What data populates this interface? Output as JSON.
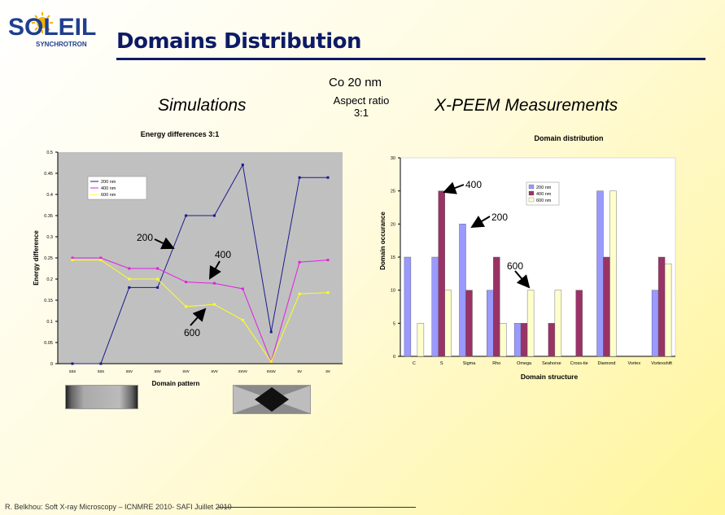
{
  "header": {
    "logo_word": "SOLEIL",
    "logo_sub": "SYNCHROTRON",
    "title": "Domains Distribution"
  },
  "labels": {
    "co": "Co 20 nm",
    "aspect_line1": "Aspect ratio",
    "aspect_line2": "3:1",
    "simulations": "Simulations",
    "xpeem": "X-PEEM Measurements",
    "footer": "R. Belkhou: Soft X-ray Microscopy – ICNMRE 2010- SAFI Juillet 2010"
  },
  "annotations": {
    "left_200": "200",
    "left_400": "400",
    "left_600": "600",
    "right_400": "400",
    "right_200": "200",
    "right_600": "600"
  },
  "colors": {
    "series_200": "#1a1a8c",
    "series_400": "#e020e0",
    "series_600": "#ffff20",
    "bar_200": "#9999ff",
    "bar_400": "#993366",
    "bar_600": "#ffffcc",
    "plot_bg_left": "#c0c0c0",
    "title_blue": "#0d1a66"
  },
  "chart_data": [
    {
      "type": "line",
      "title": "Energy differences 3:1",
      "xlabel": "Domain pattern",
      "ylabel": "Energy difference",
      "categories": [
        "sss",
        "sss",
        "ssv",
        "ssv",
        "svv",
        "svv",
        "svvv",
        "svsv",
        "sv",
        "sv"
      ],
      "ylim": [
        0,
        0.5
      ],
      "yticks": [
        "0",
        "0.05",
        "0.1",
        "0.15",
        "0.2",
        "0.25",
        "0.3",
        "0.35",
        "0.4",
        "0.45",
        "0.5"
      ],
      "legend_position": "top-left",
      "grid": false,
      "series": [
        {
          "name": "200 nm",
          "values": [
            0,
            0,
            0.18,
            0.18,
            0.35,
            0.35,
            0.47,
            0.075,
            0.44,
            0.44
          ]
        },
        {
          "name": "400 nm",
          "values": [
            0.25,
            0.25,
            0.225,
            0.225,
            0.193,
            0.19,
            0.177,
            0.005,
            0.24,
            0.245
          ]
        },
        {
          "name": "600 nm",
          "values": [
            0.245,
            0.245,
            0.2,
            0.2,
            0.135,
            0.14,
            0.103,
            0.005,
            0.165,
            0.168
          ]
        }
      ]
    },
    {
      "type": "bar",
      "title": "Domain distribution",
      "xlabel": "Domain structure",
      "ylabel": "Domain occurance",
      "categories": [
        "C",
        "S",
        "Sigma",
        "Rho",
        "Omega",
        "Seahorse",
        "Cross-tie",
        "Diamond",
        "Vortex",
        "Vortexshift"
      ],
      "ylim": [
        0,
        30
      ],
      "yticks": [
        "0",
        "5",
        "10",
        "15",
        "20",
        "25",
        "30"
      ],
      "legend_position": "top-right",
      "grid": false,
      "series": [
        {
          "name": "200 nm",
          "values": [
            15,
            15,
            20,
            10,
            5,
            0,
            0,
            25,
            0,
            10
          ]
        },
        {
          "name": "400 nm",
          "values": [
            0,
            25,
            10,
            15,
            5,
            5,
            10,
            15,
            0,
            15
          ]
        },
        {
          "name": "600 nm",
          "values": [
            5,
            10,
            0,
            5,
            10,
            10,
            0,
            25,
            0,
            14
          ]
        }
      ]
    }
  ]
}
